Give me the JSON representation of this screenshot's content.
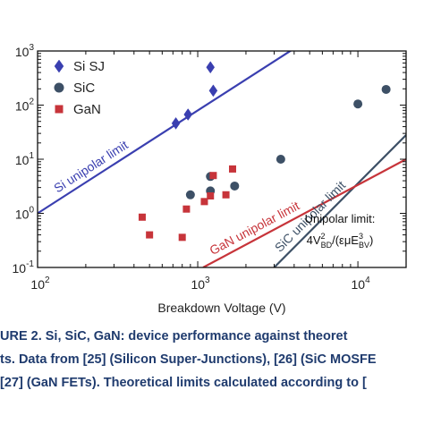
{
  "chart_data": {
    "type": "scatter",
    "xscale": "log",
    "yscale": "log",
    "xlim": [
      100,
      20000
    ],
    "ylim": [
      0.1,
      1000
    ],
    "xlabel": "Breakdown Voltage (V)",
    "x_ticks": [
      {
        "value": 100,
        "base": "10",
        "exp": "2"
      },
      {
        "value": 1000,
        "base": "10",
        "exp": "3"
      },
      {
        "value": 10000,
        "base": "10",
        "exp": "4"
      }
    ],
    "y_ticks": [
      {
        "value": 0.1,
        "base": "10",
        "exp": "-1"
      },
      {
        "value": 1,
        "base": "10",
        "exp": "0"
      },
      {
        "value": 10,
        "base": "10",
        "exp": "1"
      },
      {
        "value": 100,
        "base": "10",
        "exp": "2"
      },
      {
        "value": 1000,
        "base": "10",
        "exp": "3"
      }
    ],
    "series": [
      {
        "name": "Si SJ",
        "marker": "diamond",
        "color": "#3a3fb0",
        "points": [
          [
            730,
            46
          ],
          [
            870,
            67
          ],
          [
            1200,
            500
          ],
          [
            1250,
            185
          ]
        ]
      },
      {
        "name": "SiC",
        "marker": "circle",
        "color": "#3d5066",
        "points": [
          [
            900,
            2.2
          ],
          [
            1200,
            4.8
          ],
          [
            1200,
            2.6
          ],
          [
            1700,
            3.2
          ],
          [
            3300,
            10
          ],
          [
            10000,
            105
          ],
          [
            15000,
            195
          ]
        ]
      },
      {
        "name": "GaN",
        "marker": "square",
        "color": "#c7343a",
        "points": [
          [
            450,
            0.85
          ],
          [
            500,
            0.4
          ],
          [
            800,
            0.36
          ],
          [
            850,
            1.2
          ],
          [
            1100,
            1.65
          ],
          [
            1200,
            2.1
          ],
          [
            1250,
            5
          ],
          [
            1500,
            2.2
          ],
          [
            1650,
            6.6
          ]
        ]
      }
    ],
    "limit_lines": [
      {
        "label": "Si unipolar limit",
        "color": "#3a3fb0",
        "from": [
          100,
          1.0
        ],
        "to": [
          5000,
          1700
        ]
      },
      {
        "label": "SiC unipolar limit",
        "color": "#3d5066",
        "from": [
          3000,
          0.1
        ],
        "to": [
          20000,
          28
        ]
      },
      {
        "label": "GaN unipolar limit",
        "color": "#c7343a",
        "from": [
          1080,
          0.1
        ],
        "to": [
          20000,
          10
        ]
      }
    ],
    "annotation": {
      "line1": "Unipolar limit:",
      "formula": {
        "pre": "4V",
        "sup1": "2",
        "sub1": "BD",
        "mid": "/(εμE",
        "sup2": "3",
        "sub2": "BV",
        "post": ")"
      }
    }
  },
  "caption": {
    "line1": "URE 2.   Si, SiC, GaN: device performance against theoret",
    "line2": "ts. Data from [25] (Silicon Super-Junctions), [26] (SiC MOSFE",
    "line3": "[27] (GaN FETs). Theoretical limits calculated according to ["
  }
}
